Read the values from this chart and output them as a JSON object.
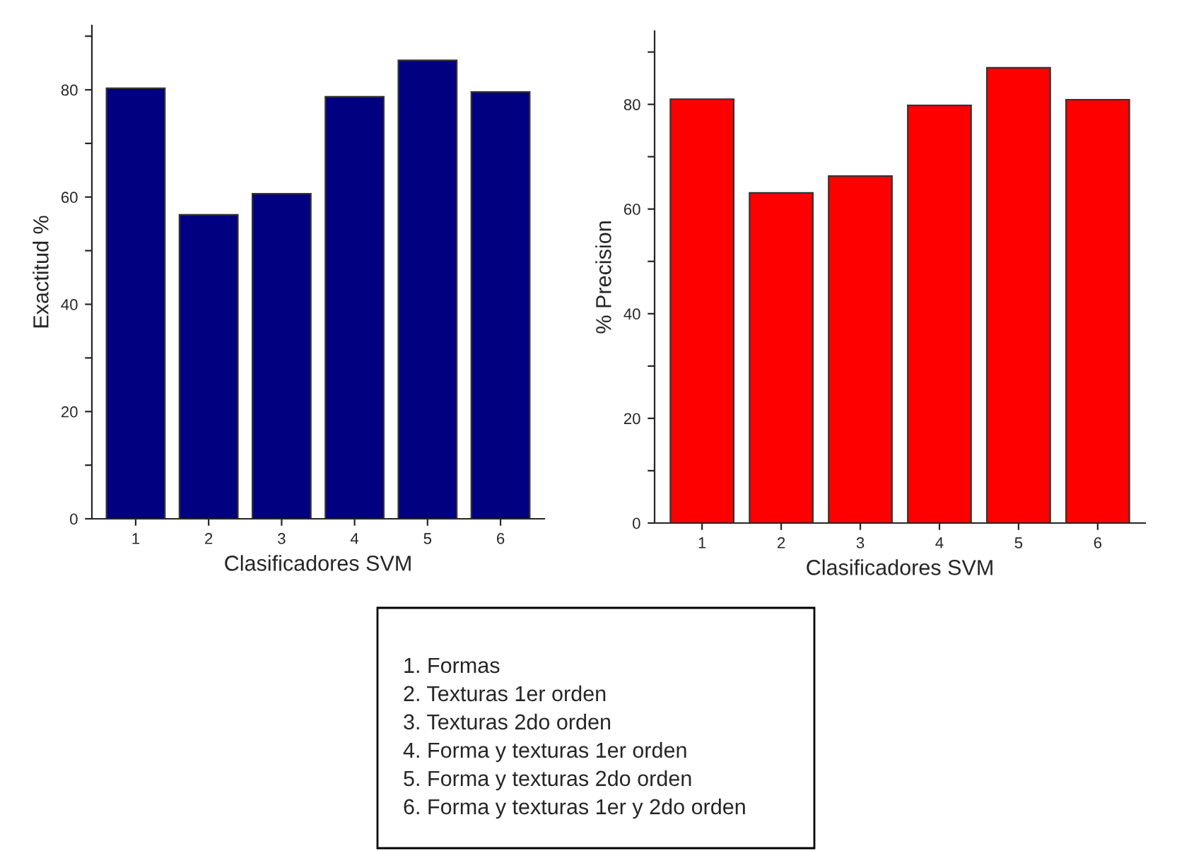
{
  "chart_data": [
    {
      "type": "bar",
      "xlabel": "Clasificadores SVM",
      "ylabel": "Exactitud %",
      "categories": [
        "1",
        "2",
        "3",
        "4",
        "5",
        "6"
      ],
      "values": [
        80.3,
        56.7,
        60.6,
        78.7,
        85.5,
        79.6
      ],
      "color": "#000080",
      "ylim": [
        0,
        92
      ],
      "yticks": [
        0,
        {
          "value": 10,
          "label": null
        },
        20,
        {
          "value": 30,
          "label": null
        },
        40,
        {
          "value": 50,
          "label": null
        },
        60,
        {
          "value": 70,
          "label": null
        },
        80,
        {
          "value": 90,
          "label": null
        }
      ],
      "grid": false,
      "legend": false
    },
    {
      "type": "bar",
      "xlabel": "Clasificadores SVM",
      "ylabel": "% Precision",
      "categories": [
        "1",
        "2",
        "3",
        "4",
        "5",
        "6"
      ],
      "values": [
        81.0,
        63.1,
        66.3,
        79.8,
        87.0,
        80.9
      ],
      "color": "#ff0000",
      "ylim": [
        0,
        94
      ],
      "yticks": [
        0,
        {
          "value": 10,
          "label": null
        },
        20,
        {
          "value": 30,
          "label": null
        },
        40,
        {
          "value": 50,
          "label": null
        },
        60,
        {
          "value": 70,
          "label": null
        },
        80,
        {
          "value": 90,
          "label": null
        }
      ],
      "grid": false,
      "legend": false
    },
    {
      "type": "other",
      "annotations": [
        "1. Formas",
        "2. Texturas 1er orden",
        "3. Texturas 2do orden",
        "4. Forma y texturas 1er orden",
        "5. Forma y texturas 2do orden",
        "6. Forma y texturas 1er y 2do orden"
      ]
    }
  ]
}
